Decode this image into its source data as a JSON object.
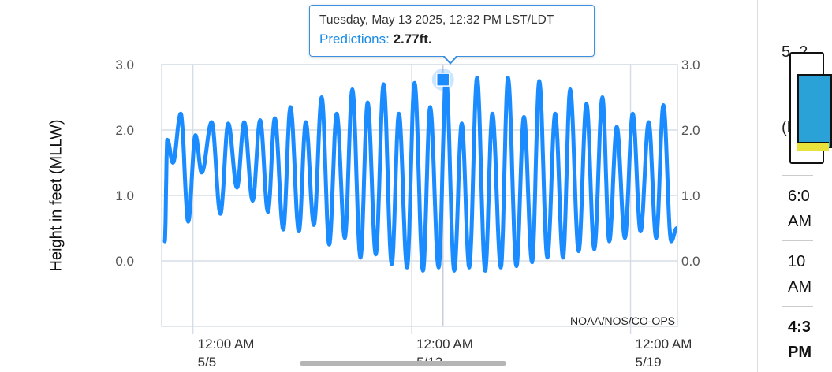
{
  "chart_data": {
    "type": "line",
    "ylabel": "Height in feet (MLLW)",
    "ylim": [
      -1.0,
      3.0
    ],
    "y_ticks": [
      "3.0",
      "2.0",
      "1.0",
      "0.0"
    ],
    "x_ticks": [
      {
        "line1": "12:00 AM",
        "line2": "5/5"
      },
      {
        "line1": "12:00 AM",
        "line2": "5/12"
      },
      {
        "line1": "12:00 AM",
        "line2": "5/19"
      }
    ],
    "grid": true,
    "credit": "NOAA/NOS/CO-OPS",
    "series": [
      {
        "name": "Predictions",
        "color": "#1a8cff",
        "x": [
          -0.9,
          -0.82,
          -0.64,
          -0.39,
          -0.15,
          0.08,
          0.28,
          0.6,
          0.88,
          1.13,
          1.41,
          1.64,
          1.91,
          2.15,
          2.4,
          2.62,
          2.89,
          3.12,
          3.39,
          3.61,
          3.87,
          4.12,
          4.36,
          4.6,
          4.86,
          5.1,
          5.36,
          5.59,
          5.85,
          6.1,
          6.36,
          6.59,
          6.85,
          7.09,
          7.36,
          7.59,
          7.86,
          8.1,
          8.36,
          8.6,
          8.84,
          9.09,
          9.35,
          9.58,
          9.85,
          10.08,
          10.35,
          10.59,
          10.85,
          11.08,
          11.34,
          11.59,
          11.84,
          12.07,
          12.34,
          12.59,
          12.84,
          13.1,
          13.32,
          13.56,
          13.82,
          14.07,
          14.32,
          14.58,
          14.82,
          15.05,
          15.3,
          15.48
        ],
        "y": [
          0.3,
          1.85,
          1.5,
          2.25,
          0.6,
          1.92,
          1.35,
          2.12,
          0.72,
          2.1,
          1.12,
          2.12,
          0.92,
          2.15,
          0.75,
          2.18,
          0.48,
          2.35,
          0.45,
          2.12,
          0.55,
          2.5,
          0.25,
          2.25,
          0.35,
          2.62,
          0.05,
          2.42,
          0.1,
          2.7,
          -0.05,
          2.25,
          -0.1,
          2.72,
          -0.15,
          2.35,
          -0.1,
          2.77,
          -0.15,
          2.1,
          -0.1,
          2.8,
          -0.15,
          2.25,
          -0.1,
          2.8,
          -0.08,
          2.2,
          -0.02,
          2.75,
          0.05,
          2.25,
          0.05,
          2.62,
          0.15,
          2.4,
          0.18,
          2.5,
          0.3,
          2.05,
          0.35,
          2.25,
          0.45,
          2.12,
          0.35,
          2.38,
          0.3,
          0.5
        ]
      }
    ],
    "highlight": {
      "x": 8.0,
      "y": 2.77
    }
  },
  "tooltip": {
    "datetime": "Tuesday, May 13 2025, 12:32 PM LST/LDT",
    "series_label": "Predictions:",
    "value": "2.77ft."
  },
  "right_panel": {
    "header_line1": "5, 2",
    "header_line2": "(LST",
    "rows": [
      {
        "line1": "6:0",
        "line2": "AM"
      },
      {
        "line1": "10",
        "line2": "AM"
      },
      {
        "line1": "4:3",
        "line2": "PM"
      }
    ]
  },
  "colors": {
    "line": "#1a8cff",
    "grid": "#d7dde6",
    "accent": "#3a8fe0"
  }
}
